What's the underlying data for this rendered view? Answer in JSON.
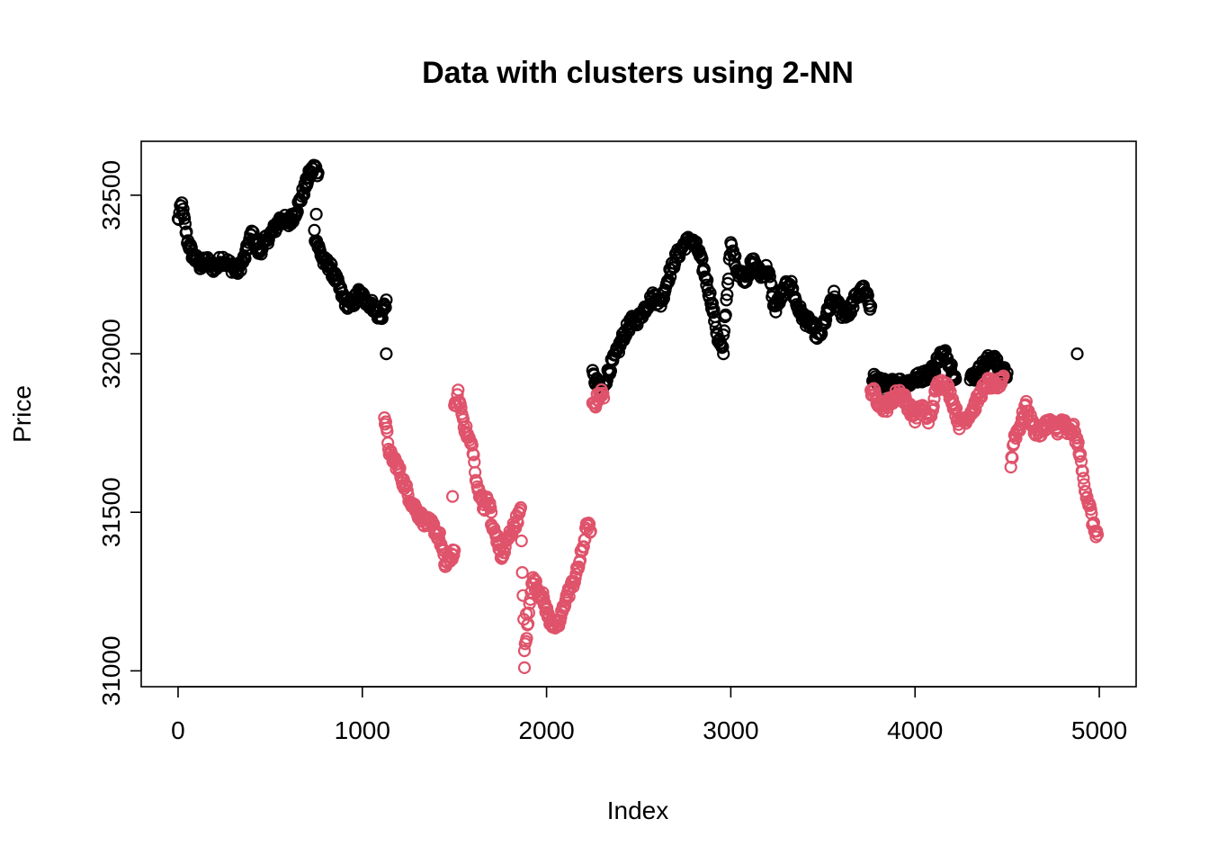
{
  "chart_data": {
    "type": "scatter",
    "title": "Data with clusters using 2-NN",
    "xlabel": "Index",
    "ylabel": "Price",
    "xlim": [
      -200,
      5200
    ],
    "ylim": [
      30950,
      32670
    ],
    "xticks": [
      0,
      1000,
      2000,
      3000,
      4000,
      5000
    ],
    "yticks": [
      31000,
      31500,
      32000,
      32500
    ],
    "grid": false,
    "legend": "none",
    "series": [
      {
        "color": "#000000",
        "marker": "open-circle",
        "segments": [
          {
            "x": [
              0,
              20,
              50,
              80,
              120,
              160,
              200,
              240,
              280,
              320,
              360,
              400,
              440,
              480,
              520,
              560,
              600,
              640,
              680,
              710,
              740,
              760
            ],
            "y": [
              32420,
              32470,
              32360,
              32310,
              32280,
              32290,
              32270,
              32300,
              32280,
              32260,
              32300,
              32380,
              32320,
              32360,
              32390,
              32430,
              32410,
              32450,
              32510,
              32560,
              32590,
              32570
            ]
          },
          {
            "x": [
              740,
              760,
              790,
              820,
              860,
              900,
              940,
              980,
              1020,
              1060,
              1100,
              1130
            ],
            "y": [
              32380,
              32340,
              32290,
              32280,
              32230,
              32170,
              32150,
              32190,
              32170,
              32150,
              32110,
              32170
            ]
          },
          {
            "x": [
              2250,
              2300,
              2340,
              2380,
              2420,
              2460,
              2500,
              2540,
              2580,
              2620,
              2660,
              2700,
              2740,
              2780,
              2820,
              2860,
              2900,
              2930,
              2960
            ],
            "y": [
              31930,
              31880,
              31950,
              32000,
              32060,
              32100,
              32110,
              32150,
              32180,
              32160,
              32240,
              32300,
              32340,
              32360,
              32330,
              32250,
              32150,
              32050,
              32000
            ]
          },
          {
            "x": [
              2960,
              3000,
              3040,
              3080,
              3120,
              3160,
              3200,
              3240,
              3280,
              3320,
              3360,
              3400,
              3440,
              3480,
              3520,
              3560,
              3600,
              3640,
              3680,
              3720,
              3760
            ],
            "y": [
              32050,
              32340,
              32260,
              32240,
              32290,
              32250,
              32270,
              32140,
              32190,
              32230,
              32150,
              32110,
              32090,
              32050,
              32120,
              32180,
              32130,
              32130,
              32180,
              32200,
              32150
            ]
          },
          {
            "x": [
              3770,
              3800,
              3850,
              3900,
              3950,
              4000,
              4050,
              4100,
              4130,
              4160,
              4190,
              4220
            ],
            "y": [
              31930,
              31910,
              31900,
              31910,
              31905,
              31920,
              31930,
              31950,
              31990,
              32000,
              31970,
              31920
            ]
          },
          {
            "x": [
              4300,
              4340,
              4380,
              4420,
              4460,
              4500
            ],
            "y": [
              31920,
              31940,
              31970,
              31990,
              31950,
              31940
            ]
          }
        ],
        "outliers": {
          "x": [
            750,
            1130,
            4880
          ],
          "y": [
            32440,
            32000,
            32000
          ]
        }
      },
      {
        "color": "#df536b",
        "marker": "open-circle",
        "segments": [
          {
            "x": [
              1120,
              1150,
              1180,
              1220,
              1260,
              1300,
              1340,
              1380,
              1420,
              1450,
              1480,
              1500
            ],
            "y": [
              31800,
              31680,
              31660,
              31600,
              31540,
              31500,
              31470,
              31460,
              31420,
              31330,
              31360,
              31380
            ]
          },
          {
            "x": [
              1500,
              1520,
              1560,
              1600,
              1620,
              1640,
              1660,
              1680,
              1700
            ],
            "y": [
              31820,
              31870,
              31760,
              31700,
              31580,
              31560,
              31520,
              31540,
              31500
            ]
          },
          {
            "x": [
              1700,
              1730,
              1760,
              1780,
              1800,
              1820,
              1840,
              1860,
              1880,
              1900,
              1920,
              1950,
              1980,
              2010,
              2040,
              2070,
              2100,
              2130,
              2160,
              2190,
              2220,
              2240
            ],
            "y": [
              31460,
              31420,
              31350,
              31400,
              31430,
              31450,
              31480,
              31500,
              31060,
              31150,
              31290,
              31260,
              31230,
              31170,
              31140,
              31150,
              31220,
              31260,
              31300,
              31370,
              31460,
              31440
            ]
          },
          {
            "x": [
              2250,
              2270,
              2290,
              2310
            ],
            "y": [
              31830,
              31850,
              31880,
              31860
            ]
          },
          {
            "x": [
              3760,
              3800,
              3840,
              3880,
              3920,
              3960,
              4000,
              4040,
              4080,
              4120,
              4160,
              4200,
              4240,
              4280,
              4320,
              4360,
              4400,
              4440,
              4480
            ],
            "y": [
              31890,
              31850,
              31830,
              31860,
              31880,
              31840,
              31800,
              31830,
              31790,
              31900,
              31910,
              31860,
              31780,
              31800,
              31830,
              31880,
              31910,
              31890,
              31930
            ]
          },
          {
            "x": [
              4520,
              4540,
              4560,
              4580,
              4600,
              4620,
              4650,
              4680,
              4710,
              4740,
              4770,
              4800,
              4830,
              4860,
              4890,
              4910,
              4930,
              4950,
              4970,
              4990
            ],
            "y": [
              31650,
              31740,
              31760,
              31790,
              31840,
              31800,
              31760,
              31750,
              31780,
              31780,
              31760,
              31790,
              31750,
              31760,
              31700,
              31620,
              31560,
              31510,
              31450,
              31430
            ]
          }
        ],
        "outliers": {
          "x": [
            1490,
            1880,
            1890
          ],
          "y": [
            31550,
            31010,
            31180
          ]
        }
      }
    ]
  }
}
